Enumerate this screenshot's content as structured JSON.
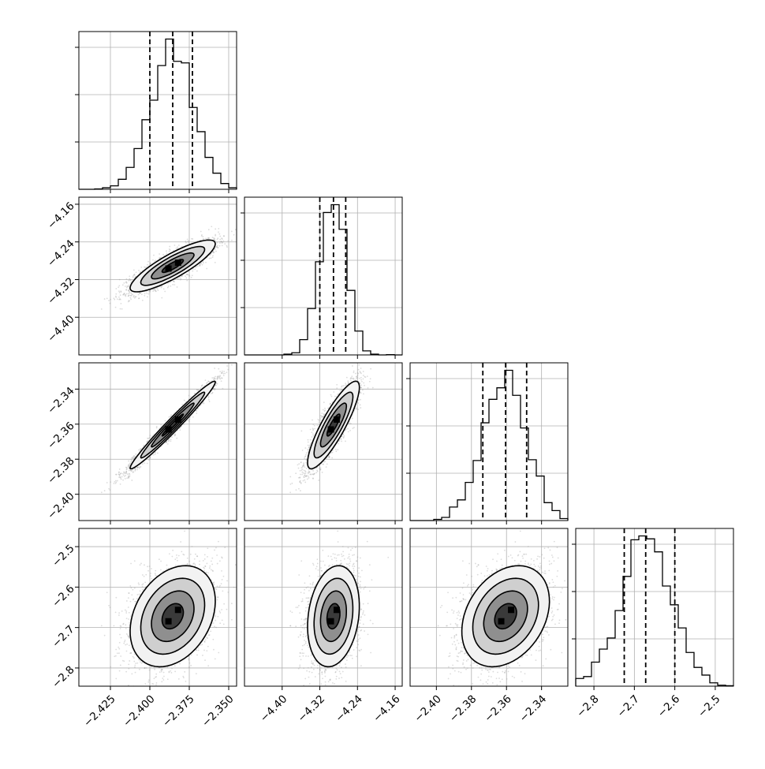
{
  "chart_data": {
    "type": "corner",
    "parameters": [
      {
        "index": 0,
        "lim": [
          -2.445,
          -2.345
        ],
        "ticks": [
          -2.425,
          -2.4,
          -2.375,
          -2.35
        ],
        "tick_labels": [
          "−2.425",
          "−2.400",
          "−2.375",
          "−2.350"
        ],
        "quantiles": [
          -2.4,
          -2.3855,
          -2.373
        ],
        "hist_peak": -2.381
      },
      {
        "index": 1,
        "lim": [
          -4.48,
          -4.145
        ],
        "ticks": [
          -4.4,
          -4.32,
          -4.24,
          -4.16
        ],
        "tick_labels": [
          "−4.40",
          "−4.32",
          "−4.24",
          "−4.16"
        ],
        "quantiles": [
          -4.32,
          -4.291,
          -4.265
        ],
        "hist_peak": -4.276
      },
      {
        "index": 2,
        "lim": [
          -2.415,
          -2.325
        ],
        "ticks": [
          -2.4,
          -2.38,
          -2.36,
          -2.34
        ],
        "tick_labels": [
          "−2.40",
          "−2.38",
          "−2.36",
          "−2.34"
        ],
        "quantiles": [
          -2.3735,
          -2.3605,
          -2.3485
        ],
        "hist_peak": -2.362
      },
      {
        "index": 3,
        "lim": [
          -2.845,
          -2.455
        ],
        "ticks": [
          -2.8,
          -2.7,
          -2.6,
          -2.5
        ],
        "tick_labels": [
          "−2.8",
          "−2.7",
          "−2.6",
          "−2.5"
        ],
        "quantiles": [
          -2.725,
          -2.672,
          -2.6
        ],
        "hist_peak": -2.68
      }
    ],
    "grid": true,
    "title": "",
    "quantile_line_style": "dashed"
  }
}
